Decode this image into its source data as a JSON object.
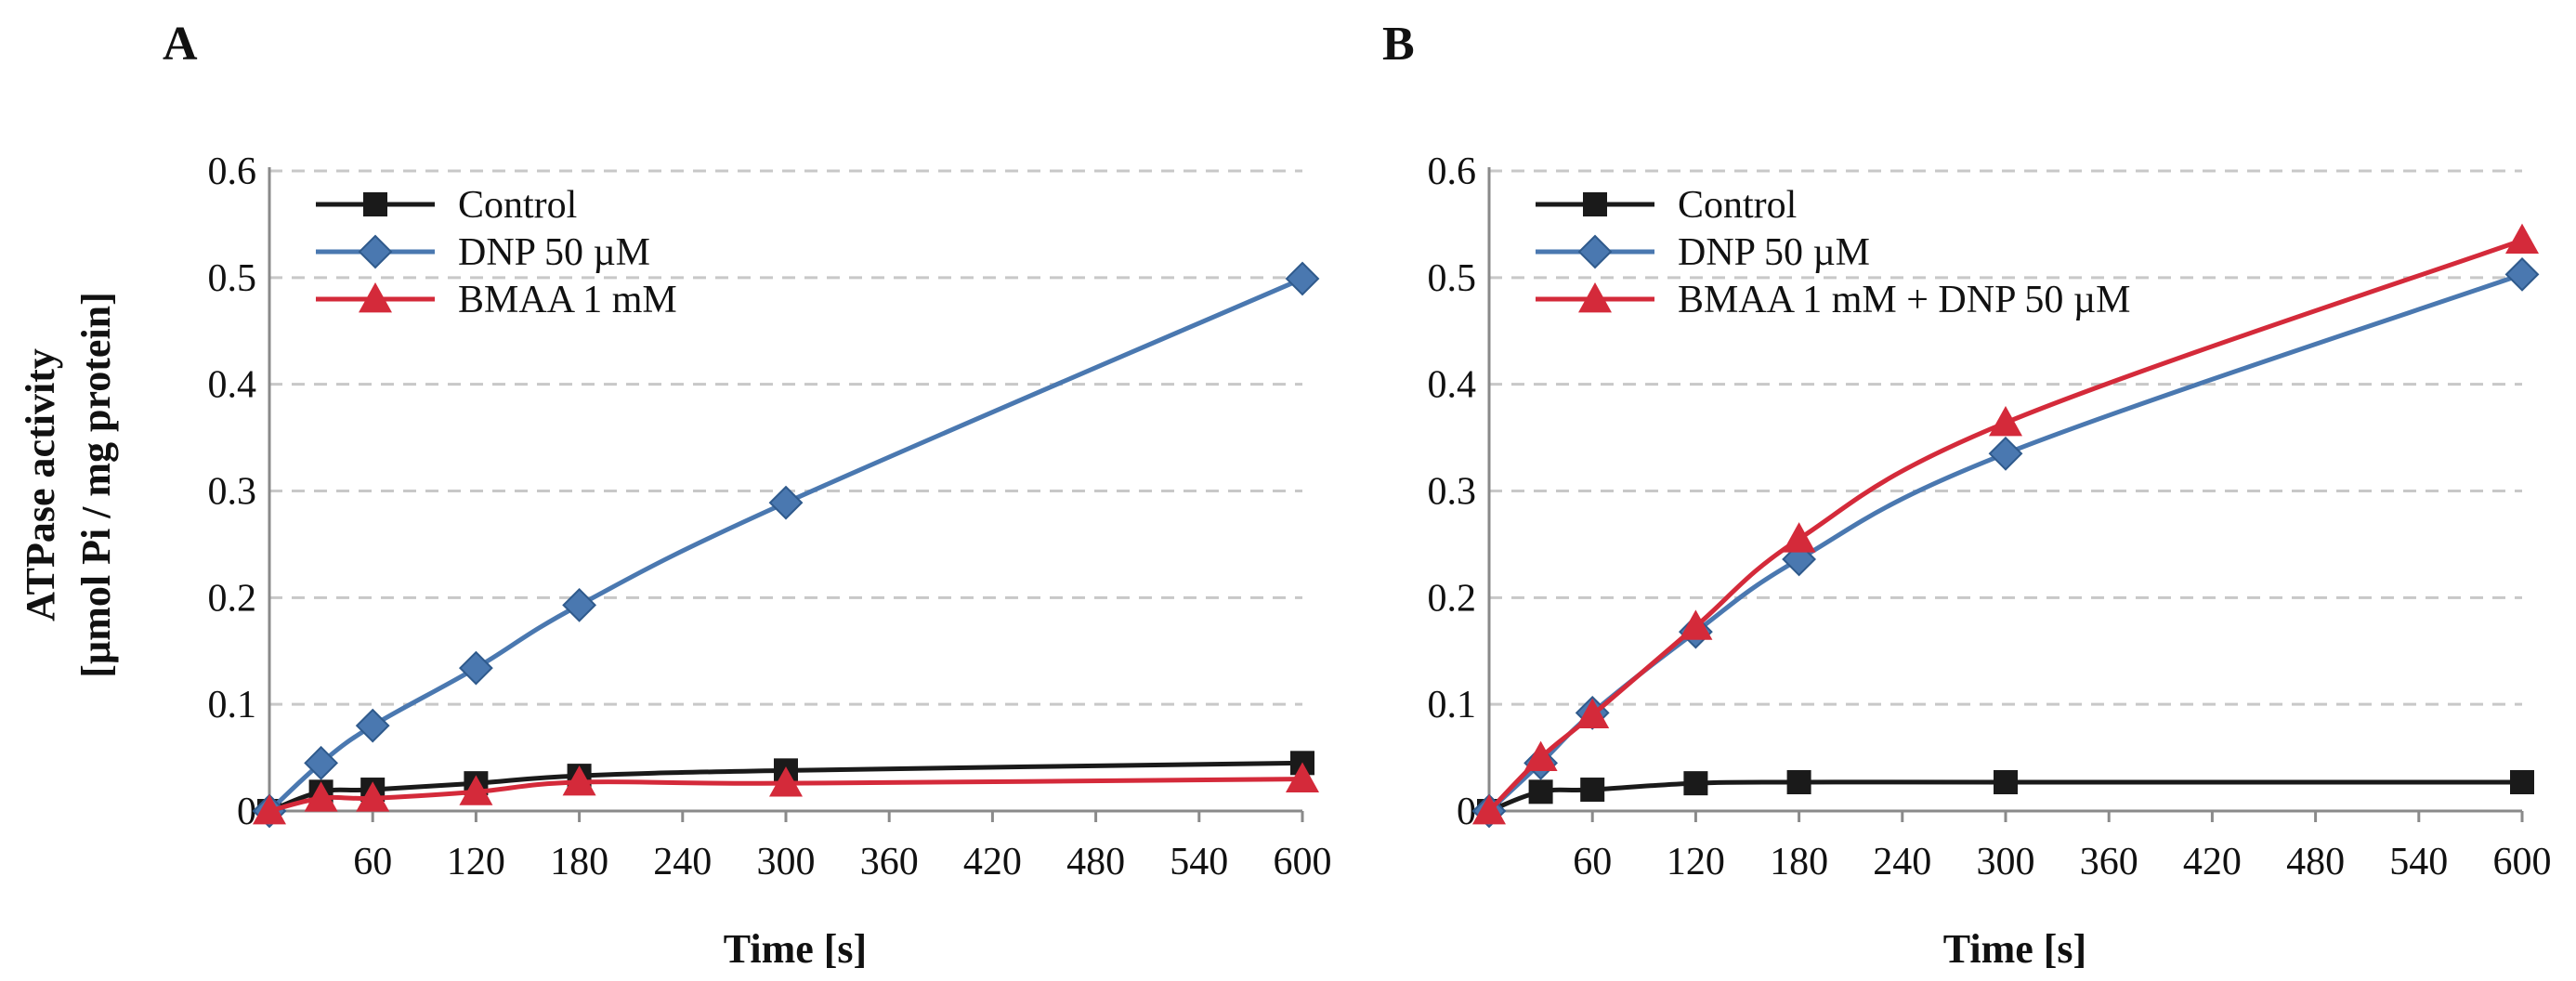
{
  "figure": {
    "ylabel_line1": "ATPase activity",
    "ylabel_line2": "[µmol Pi / mg protein]"
  },
  "chart_data": [
    {
      "panel": "A",
      "type": "line",
      "xlabel": "Time [s]",
      "ylabel": "ATPase activity [µmol Pi / mg protein]",
      "xlim": [
        0,
        600
      ],
      "ylim": [
        0,
        0.6
      ],
      "xticks": [
        60,
        120,
        180,
        240,
        300,
        360,
        420,
        480,
        540,
        600
      ],
      "yticks": [
        0,
        0.1,
        0.2,
        0.3,
        0.4,
        0.5,
        0.6
      ],
      "ytick_labels": [
        "0",
        "0.1",
        "0.2",
        "0.3",
        "0.4",
        "0.5",
        "0.6"
      ],
      "grid": "horizontal dashed",
      "legend_position": "top-left",
      "series": [
        {
          "name": "Control",
          "color": "#1a1a1a",
          "marker": "square",
          "x": [
            0,
            30,
            60,
            120,
            180,
            300,
            600
          ],
          "y": [
            0,
            0.018,
            0.02,
            0.026,
            0.033,
            0.038,
            0.045
          ]
        },
        {
          "name": "DNP 50 µM",
          "color": "#4a78b0",
          "marker": "diamond",
          "x": [
            0,
            30,
            60,
            120,
            180,
            300,
            600
          ],
          "y": [
            0,
            0.045,
            0.08,
            0.134,
            0.193,
            0.289,
            0.499
          ]
        },
        {
          "name": "BMAA 1 mM",
          "color": "#d42a3a",
          "marker": "triangle",
          "x": [
            0,
            30,
            60,
            120,
            180,
            300,
            600
          ],
          "y": [
            0,
            0.012,
            0.012,
            0.018,
            0.027,
            0.026,
            0.03
          ]
        }
      ]
    },
    {
      "panel": "B",
      "type": "line",
      "xlabel": "Time [s]",
      "ylabel": "ATPase activity [µmol Pi / mg protein]",
      "xlim": [
        0,
        600
      ],
      "ylim": [
        0,
        0.6
      ],
      "xticks": [
        60,
        120,
        180,
        240,
        300,
        360,
        420,
        480,
        540,
        600
      ],
      "yticks": [
        0,
        0.1,
        0.2,
        0.3,
        0.4,
        0.5,
        0.6
      ],
      "ytick_labels": [
        "0",
        "0.1",
        "0.2",
        "0.3",
        "0.4",
        "0.5",
        "0.6"
      ],
      "grid": "horizontal dashed",
      "legend_position": "top-left",
      "series": [
        {
          "name": "Control",
          "color": "#1a1a1a",
          "marker": "square",
          "x": [
            0,
            30,
            60,
            120,
            180,
            300,
            600
          ],
          "y": [
            0,
            0.018,
            0.02,
            0.026,
            0.027,
            0.027,
            0.027
          ]
        },
        {
          "name": "DNP 50 µM",
          "color": "#4a78b0",
          "marker": "diamond",
          "x": [
            0,
            30,
            60,
            120,
            180,
            300,
            600
          ],
          "y": [
            0,
            0.045,
            0.092,
            0.168,
            0.236,
            0.335,
            0.503
          ]
        },
        {
          "name": "BMAA 1 mM + DNP 50 µM",
          "color": "#d42a3a",
          "marker": "triangle",
          "x": [
            0,
            30,
            60,
            120,
            180,
            300,
            600
          ],
          "y": [
            0,
            0.05,
            0.09,
            0.173,
            0.255,
            0.364,
            0.535
          ]
        }
      ]
    }
  ]
}
